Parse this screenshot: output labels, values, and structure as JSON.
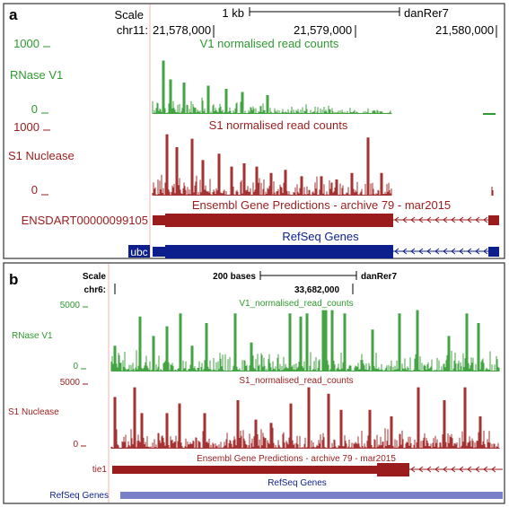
{
  "panel_a": {
    "letter": "a",
    "scale_label": "Scale",
    "scale_value": "1 kb",
    "assembly": "danRer7",
    "chrom_label": "chr11:",
    "positions": [
      "21,578,000",
      "21,579,000",
      "21,580,000"
    ],
    "v1": {
      "label": "RNase V1",
      "title": "V1 normalised read counts",
      "ymax": "1000",
      "ymin": "0",
      "color": "#2f9a2f"
    },
    "s1": {
      "label": "S1 Nuclease",
      "title": "S1 normalised read counts",
      "ymax": "1000",
      "ymin": "0",
      "color": "#9b1c1c"
    },
    "ensembl": {
      "gene": "ENSDART00000099105",
      "title": "Ensembl Gene Predictions - archive 79 - mar2015",
      "color": "#9b1c1c"
    },
    "refseq": {
      "gene": "ubc",
      "title": "RefSeq Genes",
      "color": "#0d1f8c"
    }
  },
  "panel_b": {
    "letter": "b",
    "scale_label": "Scale",
    "scale_value": "200 bases",
    "assembly": "danRer7",
    "chrom_label": "chr6:",
    "positions": [
      "33,682,000"
    ],
    "v1": {
      "label": "RNase V1",
      "title": "V1_normalised_read_counts",
      "ymax": "5000",
      "ymin": "0",
      "color": "#2f9a2f"
    },
    "s1": {
      "label": "S1 Nuclease",
      "title": "S1_normalised_read_counts",
      "ymax": "5000",
      "ymin": "0",
      "color": "#9b1c1c"
    },
    "ensembl": {
      "gene": "tie1",
      "title": "Ensembl Gene Predictions - archive 79 - mar2015",
      "color": "#9b1c1c"
    },
    "refseq": {
      "gene": "RefSeq Genes",
      "title": "RefSeq Genes",
      "color": "#0d1f8c"
    }
  }
}
